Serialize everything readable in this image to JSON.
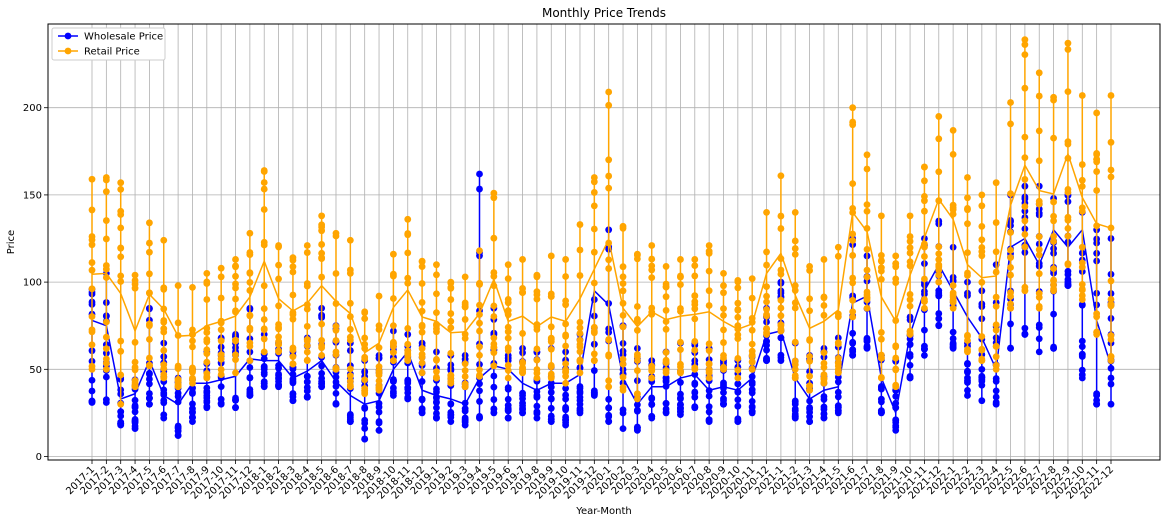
{
  "chart_data": {
    "type": "line",
    "title": "Monthly Price Trends",
    "xlabel": "Year-Month",
    "ylabel": "Price",
    "ylim": [
      -2,
      248
    ],
    "yticks": [
      0,
      50,
      100,
      150,
      200
    ],
    "grid": true,
    "legend_position": "top-left",
    "categories": [
      "2017-1",
      "2017-2",
      "2017-3",
      "2017-4",
      "2017-5",
      "2017-6",
      "2017-7",
      "2017-8",
      "2017-9",
      "2017-10",
      "2017-11",
      "2017-12",
      "2018-1",
      "2018-2",
      "2018-3",
      "2018-4",
      "2018-5",
      "2018-6",
      "2018-7",
      "2018-8",
      "2018-9",
      "2018-10",
      "2018-11",
      "2018-12",
      "2019-1",
      "2019-2",
      "2019-3",
      "2019-4",
      "2019-5",
      "2019-6",
      "2019-7",
      "2019-8",
      "2019-9",
      "2019-10",
      "2019-11",
      "2019-12",
      "2020-1",
      "2020-2",
      "2020-3",
      "2020-4",
      "2020-5",
      "2020-6",
      "2020-7",
      "2020-8",
      "2020-9",
      "2020-10",
      "2020-11",
      "2020-12",
      "2021-1",
      "2021-2",
      "2021-3",
      "2021-4",
      "2021-5",
      "2021-6",
      "2021-7",
      "2021-8",
      "2021-9",
      "2021-10",
      "2021-11",
      "2021-12",
      "2022-1",
      "2022-2",
      "2022-3",
      "2022-4",
      "2022-5",
      "2022-6",
      "2022-7",
      "2022-8",
      "2022-9",
      "2022-10",
      "2022-11",
      "2022-12"
    ],
    "series": [
      {
        "name": "Wholesale Price",
        "color": "#0000ff",
        "min": [
          31,
          31,
          18,
          16,
          30,
          22,
          12,
          20,
          28,
          30,
          28,
          35,
          40,
          40,
          32,
          34,
          40,
          30,
          20,
          10,
          15,
          35,
          33,
          25,
          22,
          20,
          18,
          22,
          25,
          22,
          25,
          22,
          20,
          18,
          25,
          35,
          20,
          16,
          15,
          22,
          25,
          24,
          28,
          20,
          30,
          20,
          25,
          55,
          55,
          22,
          20,
          22,
          25,
          58,
          62,
          25,
          15,
          45,
          58,
          75,
          62,
          35,
          32,
          30,
          62,
          70,
          60,
          62,
          98,
          45,
          30,
          30
        ],
        "max": [
          96,
          105,
          45,
          44,
          85,
          65,
          45,
          50,
          60,
          68,
          70,
          85,
          70,
          65,
          60,
          68,
          85,
          75,
          65,
          55,
          58,
          72,
          70,
          65,
          60,
          58,
          58,
          162,
          85,
          58,
          62,
          60,
          62,
          60,
          70,
          90,
          130,
          75,
          62,
          55,
          60,
          65,
          65,
          62,
          55,
          55,
          58,
          85,
          100,
          65,
          58,
          62,
          68,
          125,
          115,
          58,
          55,
          80,
          125,
          135,
          120,
          100,
          95,
          110,
          150,
          155,
          155,
          148,
          150,
          140,
          130,
          125
        ],
        "mid": [
          78,
          75,
          33,
          36,
          55,
          35,
          30,
          42,
          42,
          44,
          46,
          56,
          55,
          55,
          45,
          49,
          55,
          43,
          35,
          30,
          32,
          50,
          60,
          38,
          35,
          33,
          30,
          45,
          52,
          50,
          42,
          38,
          42,
          42,
          47,
          95,
          87,
          45,
          30,
          40,
          40,
          45,
          47,
          38,
          40,
          38,
          45,
          70,
          72,
          45,
          33,
          38,
          40,
          88,
          92,
          45,
          25,
          70,
          95,
          110,
          95,
          80,
          68,
          50,
          120,
          125,
          110,
          130,
          120,
          130,
          78,
          52
        ]
      },
      {
        "name": "Retail Price",
        "color": "#ffa500",
        "min": [
          50,
          50,
          30,
          40,
          52,
          45,
          40,
          42,
          45,
          47,
          48,
          55,
          60,
          60,
          53,
          55,
          58,
          50,
          40,
          36,
          38,
          55,
          55,
          48,
          45,
          42,
          40,
          46,
          52,
          45,
          48,
          45,
          45,
          42,
          48,
          55,
          40,
          38,
          33,
          45,
          48,
          48,
          50,
          45,
          50,
          45,
          50,
          70,
          72,
          45,
          38,
          42,
          48,
          80,
          85,
          45,
          40,
          70,
          85,
          100,
          85,
          60,
          55,
          50,
          85,
          95,
          85,
          95,
          110,
          90,
          70,
          55
        ],
        "max": [
          159,
          160,
          157,
          104,
          134,
          124,
          98,
          97,
          105,
          108,
          113,
          128,
          164,
          121,
          114,
          121,
          138,
          128,
          124,
          83,
          92,
          116,
          136,
          112,
          110,
          100,
          103,
          118,
          151,
          110,
          113,
          104,
          115,
          113,
          133,
          160,
          209,
          132,
          116,
          121,
          109,
          113,
          113,
          121,
          105,
          101,
          102,
          140,
          161,
          140,
          109,
          113,
          120,
          200,
          173,
          138,
          115,
          138,
          166,
          195,
          187,
          160,
          150,
          157,
          203,
          239,
          220,
          206,
          237,
          207,
          197,
          207
        ]
      }
    ]
  }
}
